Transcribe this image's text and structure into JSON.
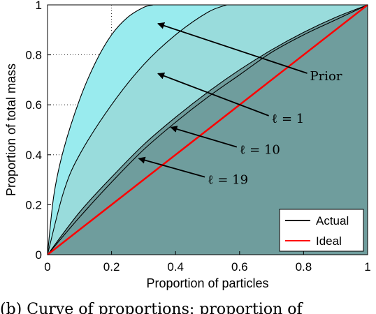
{
  "chart_data": {
    "type": "area",
    "title": "",
    "xlabel": "Proportion of particles",
    "ylabel": "Proportion of total mass",
    "xlim": [
      0,
      1
    ],
    "ylim": [
      0,
      1
    ],
    "xticks": [
      "0",
      "0.2",
      "0.4",
      "0.6",
      "0.8",
      "1"
    ],
    "yticks": [
      "0",
      "0.2",
      "0.4",
      "0.6",
      "0.8",
      "1"
    ],
    "grid": "dotted",
    "legend_position": "bottom-right",
    "legend": [
      {
        "name": "Actual",
        "color": "#000000"
      },
      {
        "name": "Ideal",
        "color": "#ff0000"
      }
    ],
    "fill_colors": {
      "prior": "#99ebee",
      "l1": "#99dcdc",
      "l10": "#6f9d9d"
    },
    "curves": [
      {
        "label": "Prior",
        "fill": "prior",
        "x": [
          0,
          0.02,
          0.05,
          0.1,
          0.15,
          0.2,
          0.25,
          0.3,
          0.33
        ],
        "y": [
          0,
          0.24,
          0.42,
          0.62,
          0.77,
          0.88,
          0.95,
          0.99,
          1.0
        ]
      },
      {
        "label": "ℓ = 1",
        "fill": "l1",
        "x": [
          0,
          0.05,
          0.1,
          0.2,
          0.3,
          0.4,
          0.5,
          0.56
        ],
        "y": [
          0,
          0.25,
          0.4,
          0.6,
          0.76,
          0.88,
          0.97,
          1.0
        ]
      },
      {
        "label": "ℓ = 10",
        "fill": "l10",
        "x": [
          0,
          0.1,
          0.2,
          0.3,
          0.4,
          0.5,
          0.6,
          0.7,
          0.8,
          0.9,
          1.0
        ],
        "y": [
          0,
          0.17,
          0.31,
          0.44,
          0.55,
          0.65,
          0.74,
          0.82,
          0.89,
          0.95,
          1.0
        ]
      },
      {
        "label": "ℓ = 19",
        "fill": "l10",
        "x": [
          0,
          0.1,
          0.2,
          0.3,
          0.4,
          0.5,
          0.6,
          0.7,
          0.8,
          0.9,
          1.0
        ],
        "y": [
          0,
          0.15,
          0.29,
          0.42,
          0.53,
          0.63,
          0.72,
          0.81,
          0.88,
          0.94,
          1.0
        ]
      }
    ],
    "ideal": {
      "x": [
        0,
        1
      ],
      "y": [
        0,
        1
      ]
    },
    "annotations": [
      {
        "text": "Prior",
        "text_at": [
          0.82,
          0.715
        ],
        "arrow_to": [
          0.345,
          0.925
        ]
      },
      {
        "text": "ℓ = 1",
        "text_at": [
          0.7,
          0.545
        ],
        "arrow_to": [
          0.345,
          0.725
        ]
      },
      {
        "text": "ℓ = 10",
        "text_at": [
          0.6,
          0.42
        ],
        "arrow_to": [
          0.385,
          0.51
        ]
      },
      {
        "text": "ℓ = 19",
        "text_at": [
          0.5,
          0.3
        ],
        "arrow_to": [
          0.285,
          0.385
        ]
      }
    ]
  },
  "caption": "(b) Curve of proportions: proportion of"
}
